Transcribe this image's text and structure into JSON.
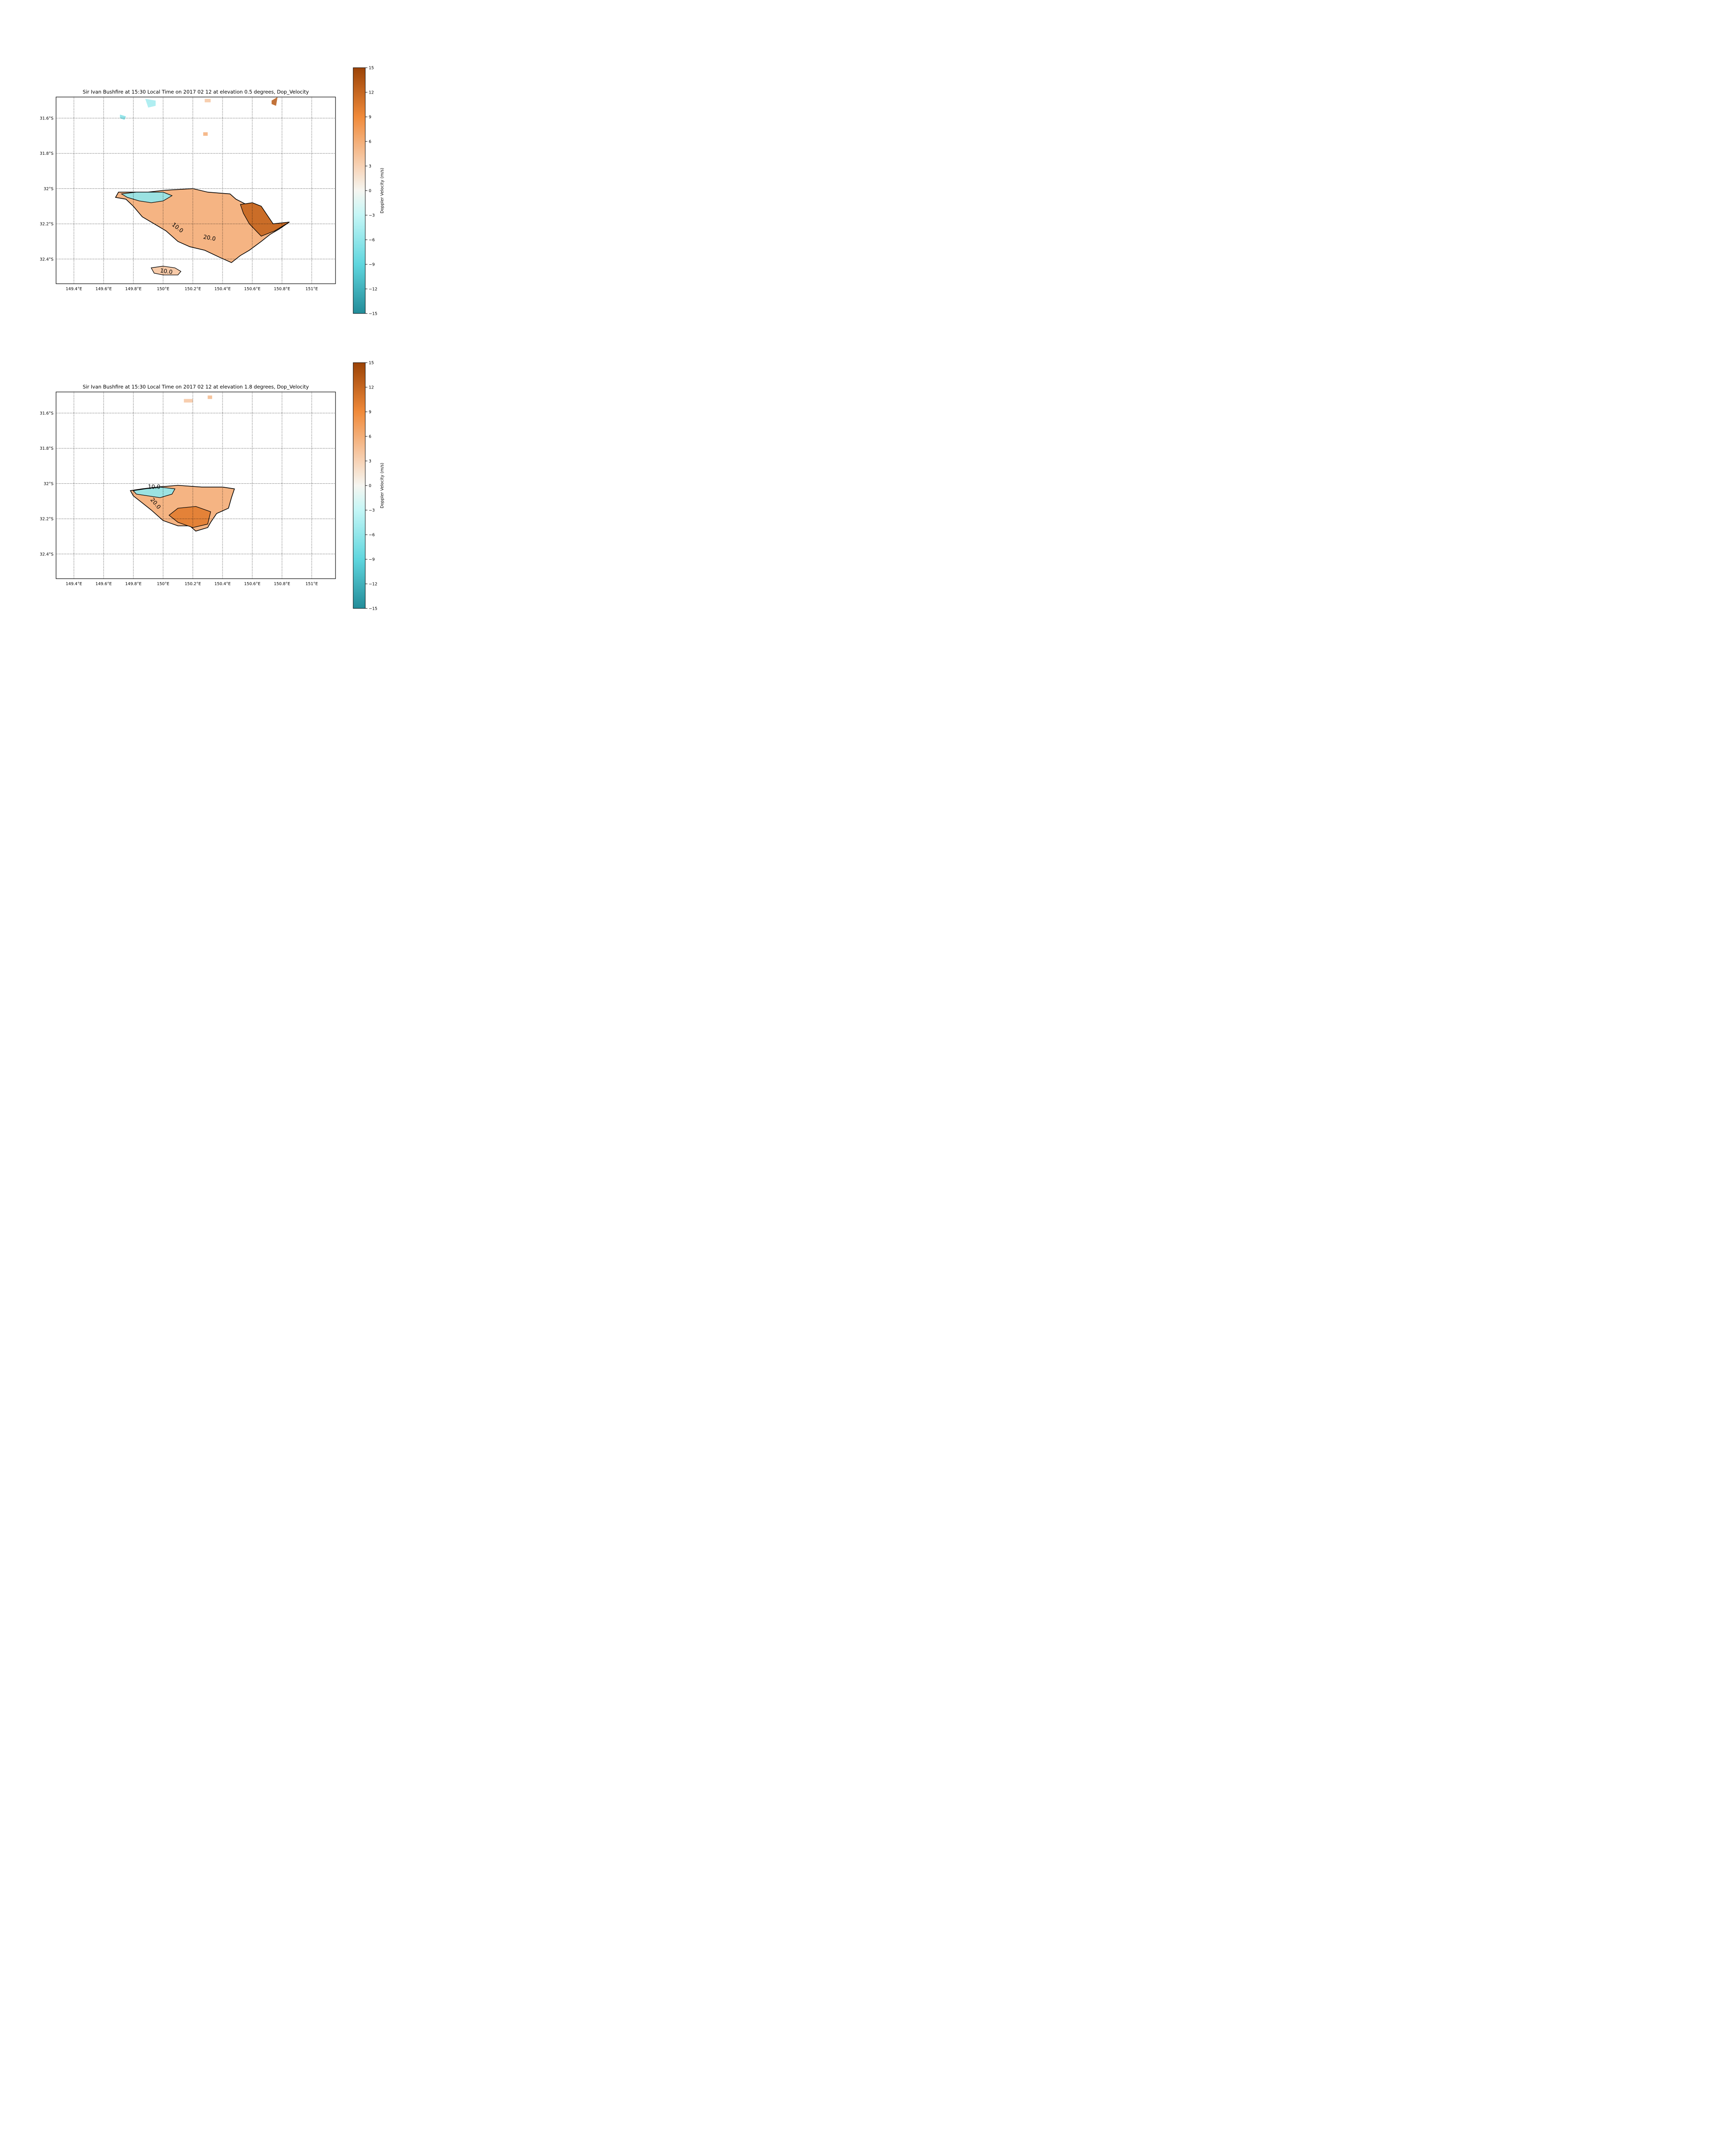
{
  "chart_data": [
    {
      "type": "heatmap",
      "title": "Sir Ivan Bushfire at 15:30 Local Time on 2017 02 12 at elevation 0.5 degrees, Dop_Velocity",
      "xlim": [
        149.28,
        151.16
      ],
      "ylim": [
        -32.54,
        -31.48
      ],
      "x_ticks": [
        149.4,
        149.6,
        149.8,
        150.0,
        150.2,
        150.4,
        150.6,
        150.8,
        151.0
      ],
      "x_tick_labels": [
        "149.4°E",
        "149.6°E",
        "149.8°E",
        "150°E",
        "150.2°E",
        "150.4°E",
        "150.6°E",
        "150.8°E",
        "151°E"
      ],
      "y_ticks": [
        -31.6,
        -31.8,
        -32.0,
        -32.2,
        -32.4
      ],
      "y_tick_labels": [
        "31.6°S",
        "31.8°S",
        "32°S",
        "32.2°S",
        "32.4°S"
      ],
      "grid": "dotted",
      "colorbar": {
        "label": "Doppler Velocity (m/s)",
        "range": [
          -15,
          15
        ],
        "ticks": [
          15,
          12,
          9,
          6,
          3,
          0,
          -3,
          -6,
          -9,
          -12,
          -15
        ],
        "tick_labels": [
          "15",
          "12",
          "9",
          "6",
          "3",
          "0",
          "−3",
          "−6",
          "−9",
          "−12",
          "−15"
        ]
      },
      "contour_labels": [
        {
          "text": "10.0",
          "lon": 150.09,
          "lat": -32.23,
          "angle": 38
        },
        {
          "text": "20.0",
          "lon": 150.31,
          "lat": -32.29,
          "angle": 10
        },
        {
          "text": "10.0",
          "lon": 150.02,
          "lat": -32.48,
          "angle": 8
        }
      ],
      "echo_regions": [
        {
          "name": "main",
          "velocity": 6,
          "outline": [
            [
              149.7,
              -32.02
            ],
            [
              149.8,
              -32.02
            ],
            [
              149.9,
              -32.02
            ],
            [
              150.0,
              -32.01
            ],
            [
              150.2,
              -32.0
            ],
            [
              150.3,
              -32.02
            ],
            [
              150.45,
              -32.03
            ],
            [
              150.49,
              -32.06
            ],
            [
              150.56,
              -32.09
            ],
            [
              150.6,
              -32.08
            ],
            [
              150.66,
              -32.1
            ],
            [
              150.7,
              -32.15
            ],
            [
              150.74,
              -32.2
            ],
            [
              150.85,
              -32.19
            ],
            [
              150.78,
              -32.23
            ],
            [
              150.72,
              -32.26
            ],
            [
              150.66,
              -32.3
            ],
            [
              150.58,
              -32.35
            ],
            [
              150.52,
              -32.38
            ],
            [
              150.46,
              -32.42
            ],
            [
              150.38,
              -32.39
            ],
            [
              150.28,
              -32.35
            ],
            [
              150.18,
              -32.33
            ],
            [
              150.1,
              -32.3
            ],
            [
              150.02,
              -32.24
            ],
            [
              149.94,
              -32.2
            ],
            [
              149.86,
              -32.16
            ],
            [
              149.8,
              -32.1
            ],
            [
              149.75,
              -32.06
            ],
            [
              149.68,
              -32.05
            ]
          ]
        },
        {
          "name": "outflow-positive",
          "velocity": 12,
          "outline": [
            [
              150.52,
              -32.09
            ],
            [
              150.6,
              -32.08
            ],
            [
              150.66,
              -32.1
            ],
            [
              150.7,
              -32.15
            ],
            [
              150.74,
              -32.2
            ],
            [
              150.85,
              -32.19
            ],
            [
              150.75,
              -32.24
            ],
            [
              150.66,
              -32.27
            ],
            [
              150.58,
              -32.2
            ],
            [
              150.54,
              -32.14
            ]
          ]
        },
        {
          "name": "inflow-negative",
          "velocity": -6,
          "outline": [
            [
              149.72,
              -32.03
            ],
            [
              149.82,
              -32.02
            ],
            [
              149.92,
              -32.02
            ],
            [
              150.0,
              -32.02
            ],
            [
              150.06,
              -32.04
            ],
            [
              150.0,
              -32.07
            ],
            [
              149.92,
              -32.08
            ],
            [
              149.84,
              -32.07
            ],
            [
              149.76,
              -32.05
            ]
          ]
        },
        {
          "name": "south-cell",
          "velocity": 4,
          "outline": [
            [
              149.92,
              -32.45
            ],
            [
              150.0,
              -32.44
            ],
            [
              150.08,
              -32.45
            ],
            [
              150.12,
              -32.47
            ],
            [
              150.1,
              -32.49
            ],
            [
              150.0,
              -32.49
            ],
            [
              149.94,
              -32.48
            ]
          ]
        },
        {
          "name": "speck-a",
          "velocity": -5,
          "outline": [
            [
              149.88,
              -31.49
            ],
            [
              149.95,
              -31.5
            ],
            [
              149.95,
              -31.53
            ],
            [
              149.9,
              -31.54
            ]
          ]
        },
        {
          "name": "speck-b",
          "velocity": -7,
          "outline": [
            [
              149.71,
              -31.58
            ],
            [
              149.75,
              -31.59
            ],
            [
              149.74,
              -31.61
            ],
            [
              149.71,
              -31.6
            ]
          ]
        },
        {
          "name": "speck-c",
          "velocity": 4,
          "outline": [
            [
              150.28,
              -31.49
            ],
            [
              150.32,
              -31.49
            ],
            [
              150.32,
              -31.51
            ],
            [
              150.28,
              -31.51
            ]
          ]
        },
        {
          "name": "speck-d",
          "velocity": 13,
          "outline": [
            [
              150.73,
              -31.5
            ],
            [
              150.77,
              -31.48
            ],
            [
              150.76,
              -31.53
            ],
            [
              150.73,
              -31.52
            ]
          ]
        },
        {
          "name": "speck-e",
          "velocity": 6,
          "outline": [
            [
              150.27,
              -31.68
            ],
            [
              150.3,
              -31.68
            ],
            [
              150.3,
              -31.7
            ],
            [
              150.27,
              -31.7
            ]
          ]
        }
      ]
    },
    {
      "type": "heatmap",
      "title": "Sir Ivan Bushfire at 15:30 Local Time on 2017 02 12 at elevation 1.8 degrees, Dop_Velocity",
      "xlim": [
        149.28,
        151.16
      ],
      "ylim": [
        -32.54,
        -31.48
      ],
      "x_ticks": [
        149.4,
        149.6,
        149.8,
        150.0,
        150.2,
        150.4,
        150.6,
        150.8,
        151.0
      ],
      "x_tick_labels": [
        "149.4°E",
        "149.6°E",
        "149.8°E",
        "150°E",
        "150.2°E",
        "150.4°E",
        "150.6°E",
        "150.8°E",
        "151°E"
      ],
      "y_ticks": [
        -31.6,
        -31.8,
        -32.0,
        -32.2,
        -32.4
      ],
      "y_tick_labels": [
        "31.6°S",
        "31.8°S",
        "32°S",
        "32.2°S",
        "32.4°S"
      ],
      "grid": "dotted",
      "colorbar": {
        "label": "Doppler Velocity (m/s)",
        "range": [
          -15,
          15
        ],
        "ticks": [
          15,
          12,
          9,
          6,
          3,
          0,
          -3,
          -6,
          -9,
          -12,
          -15
        ],
        "tick_labels": [
          "15",
          "12",
          "9",
          "6",
          "3",
          "0",
          "−3",
          "−6",
          "−9",
          "−12",
          "−15"
        ]
      },
      "contour_labels": [
        {
          "text": "10.0",
          "lon": 149.94,
          "lat": -32.03,
          "angle": 0
        },
        {
          "text": "20.0",
          "lon": 149.94,
          "lat": -32.12,
          "angle": 50
        }
      ],
      "echo_regions": [
        {
          "name": "main",
          "velocity": 6,
          "outline": [
            [
              149.78,
              -32.04
            ],
            [
              149.86,
              -32.03
            ],
            [
              149.96,
              -32.02
            ],
            [
              150.1,
              -32.01
            ],
            [
              150.26,
              -32.02
            ],
            [
              150.4,
              -32.02
            ],
            [
              150.48,
              -32.03
            ],
            [
              150.46,
              -32.08
            ],
            [
              150.44,
              -32.14
            ],
            [
              150.36,
              -32.17
            ],
            [
              150.32,
              -32.22
            ],
            [
              150.3,
              -32.25
            ],
            [
              150.22,
              -32.27
            ],
            [
              150.18,
              -32.24
            ],
            [
              150.1,
              -32.24
            ],
            [
              150.0,
              -32.21
            ],
            [
              149.92,
              -32.15
            ],
            [
              149.86,
              -32.11
            ],
            [
              149.8,
              -32.07
            ]
          ]
        },
        {
          "name": "inflow-negative",
          "velocity": -6,
          "outline": [
            [
              149.8,
              -32.04
            ],
            [
              149.88,
              -32.03
            ],
            [
              149.98,
              -32.02
            ],
            [
              150.08,
              -32.03
            ],
            [
              150.06,
              -32.06
            ],
            [
              149.98,
              -32.08
            ],
            [
              149.9,
              -32.07
            ],
            [
              149.82,
              -32.06
            ]
          ]
        },
        {
          "name": "core-positive",
          "velocity": 10,
          "outline": [
            [
              150.1,
              -32.14
            ],
            [
              150.22,
              -32.13
            ],
            [
              150.32,
              -32.16
            ],
            [
              150.3,
              -32.23
            ],
            [
              150.2,
              -32.25
            ],
            [
              150.1,
              -32.22
            ],
            [
              150.04,
              -32.18
            ]
          ]
        },
        {
          "name": "speck-a",
          "velocity": 4,
          "outline": [
            [
              150.14,
              -31.52
            ],
            [
              150.2,
              -31.52
            ],
            [
              150.2,
              -31.54
            ],
            [
              150.14,
              -31.54
            ]
          ]
        },
        {
          "name": "speck-b",
          "velocity": 5,
          "outline": [
            [
              150.3,
              -31.5
            ],
            [
              150.33,
              -31.5
            ],
            [
              150.33,
              -31.52
            ],
            [
              150.3,
              -31.52
            ]
          ]
        }
      ]
    }
  ]
}
